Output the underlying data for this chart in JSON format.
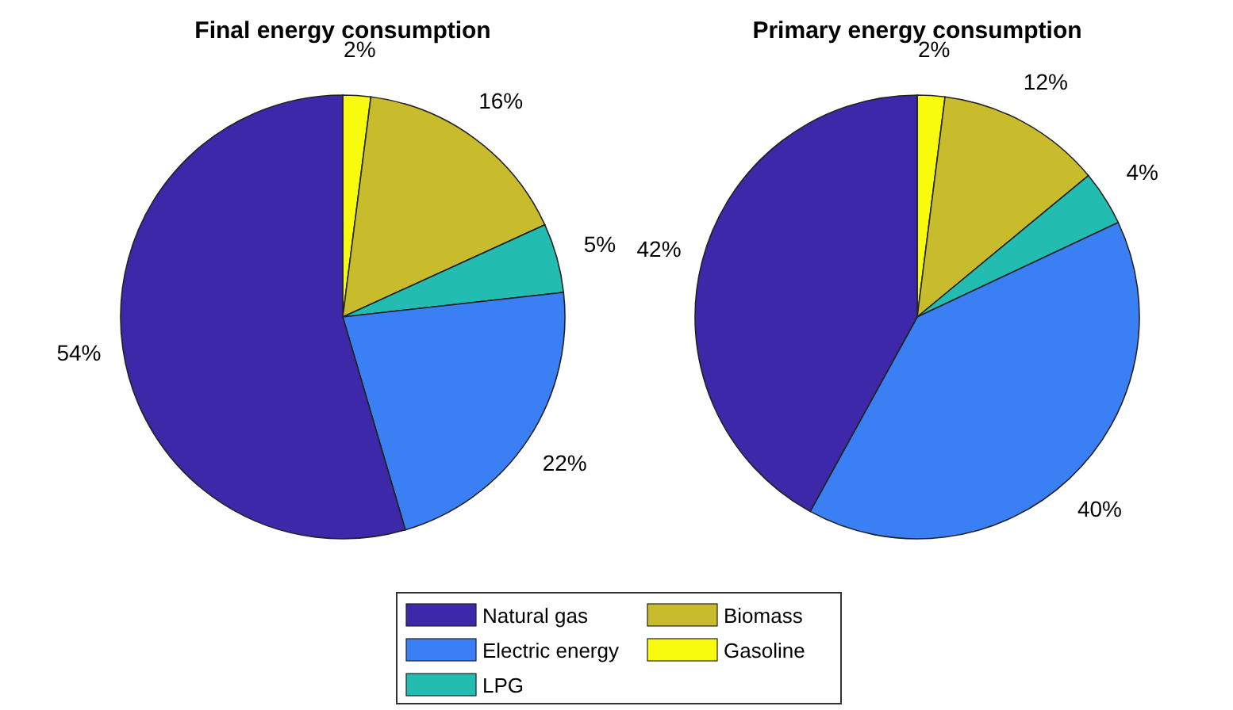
{
  "chart_data": [
    {
      "type": "pie",
      "title": "Final energy consumption",
      "categories": [
        "Gasoline",
        "Biomass",
        "LPG",
        "Electric energy",
        "Natural gas"
      ],
      "values": [
        2,
        16,
        5,
        22,
        54
      ],
      "value_labels": [
        "2%",
        "16%",
        "5%",
        "22%",
        "54%"
      ],
      "colors": [
        "#f9fb0e",
        "#c9bc2c",
        "#22bdb0",
        "#3a80f4",
        "#3c28a8"
      ],
      "legend": "bottom"
    },
    {
      "type": "pie",
      "title": "Primary energy consumption",
      "categories": [
        null,
        null,
        null,
        null,
        null
      ],
      "values": [
        2,
        12,
        4,
        40,
        42
      ],
      "value_labels": [
        "2%",
        "12%",
        "4%",
        "40%",
        "42%"
      ],
      "colors": [
        "#f9fb0e",
        "#c9bc2c",
        "#22bdb0",
        "#3a80f4",
        "#3c28a8"
      ]
    }
  ]
}
